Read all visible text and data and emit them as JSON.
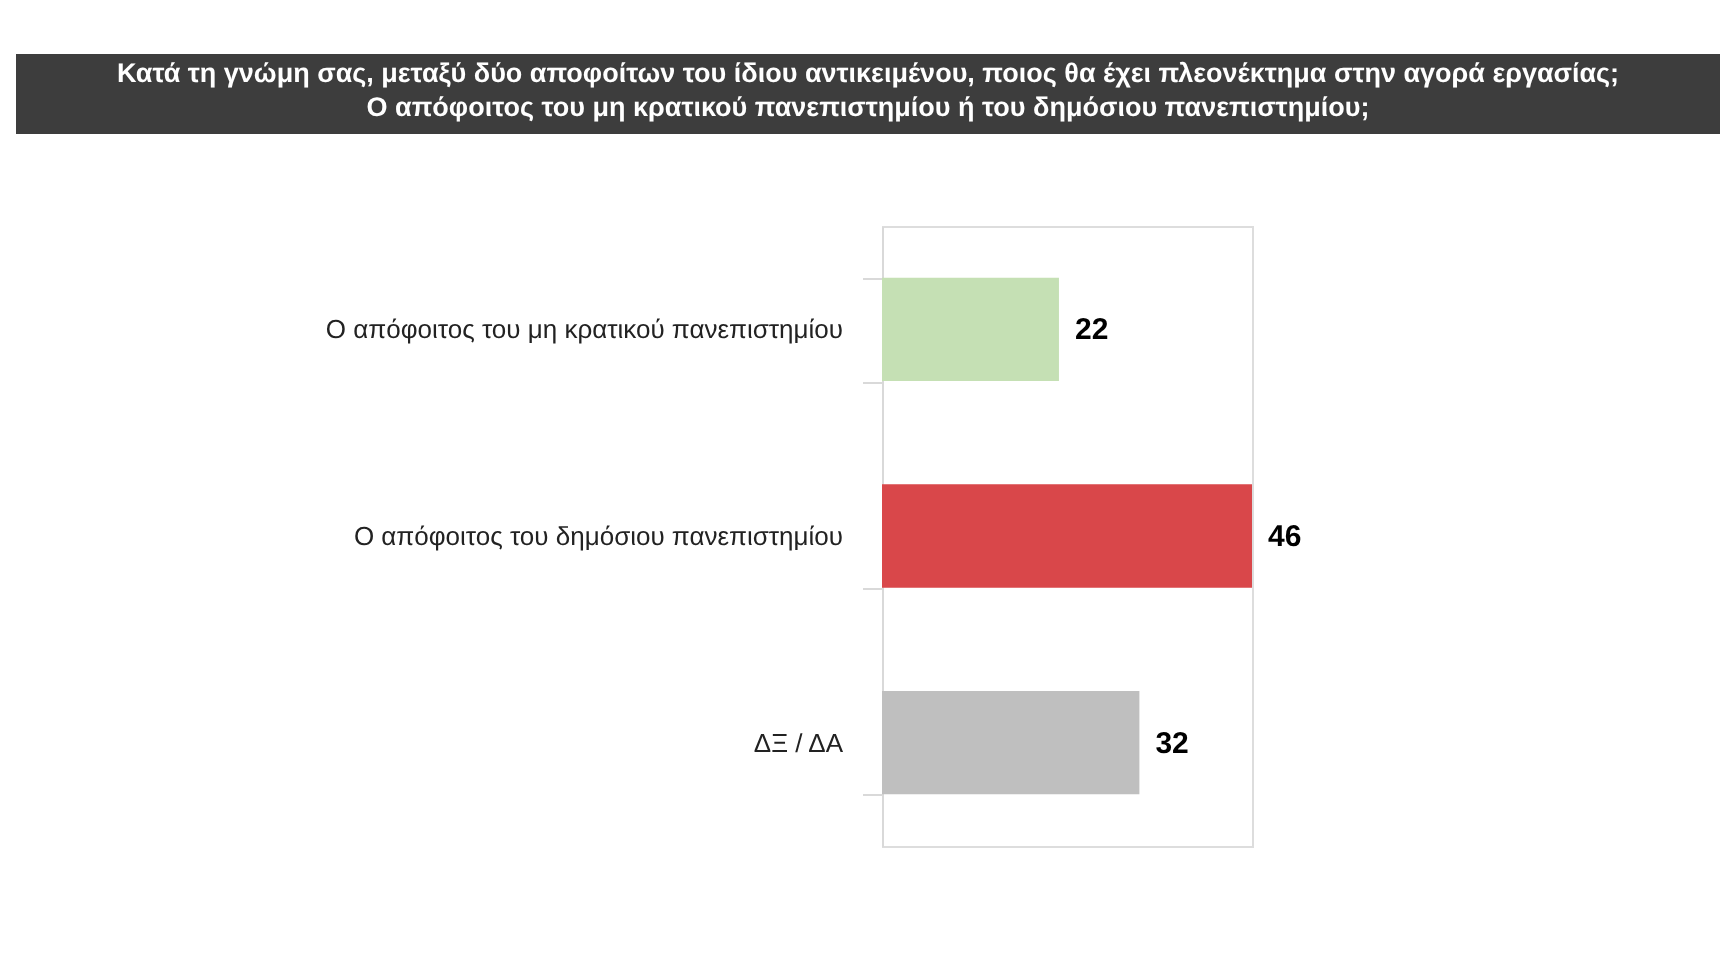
{
  "chart_data": {
    "type": "bar",
    "orientation": "horizontal",
    "title": "Κατά τη γνώμη σας, μεταξύ δύο αποφοίτων του ίδιου αντικειμένου, ποιος θα έχει πλεονέκτημα στην αγορά εργασίας;\nΟ απόφοιτος του μη κρατικού πανεπιστημίου ή του δημόσιου πανεπιστημίου;",
    "categories": [
      "Ο απόφοιτος του μη κρατικού πανεπιστημίου",
      "Ο απόφοιτος του δημόσιου πανεπιστημίου",
      "ΔΞ / ΔΑ"
    ],
    "values": [
      22,
      46,
      32
    ],
    "colors": [
      "#c5e0b4",
      "#d9474a",
      "#bfbfbf"
    ],
    "data_labels": true
  }
}
